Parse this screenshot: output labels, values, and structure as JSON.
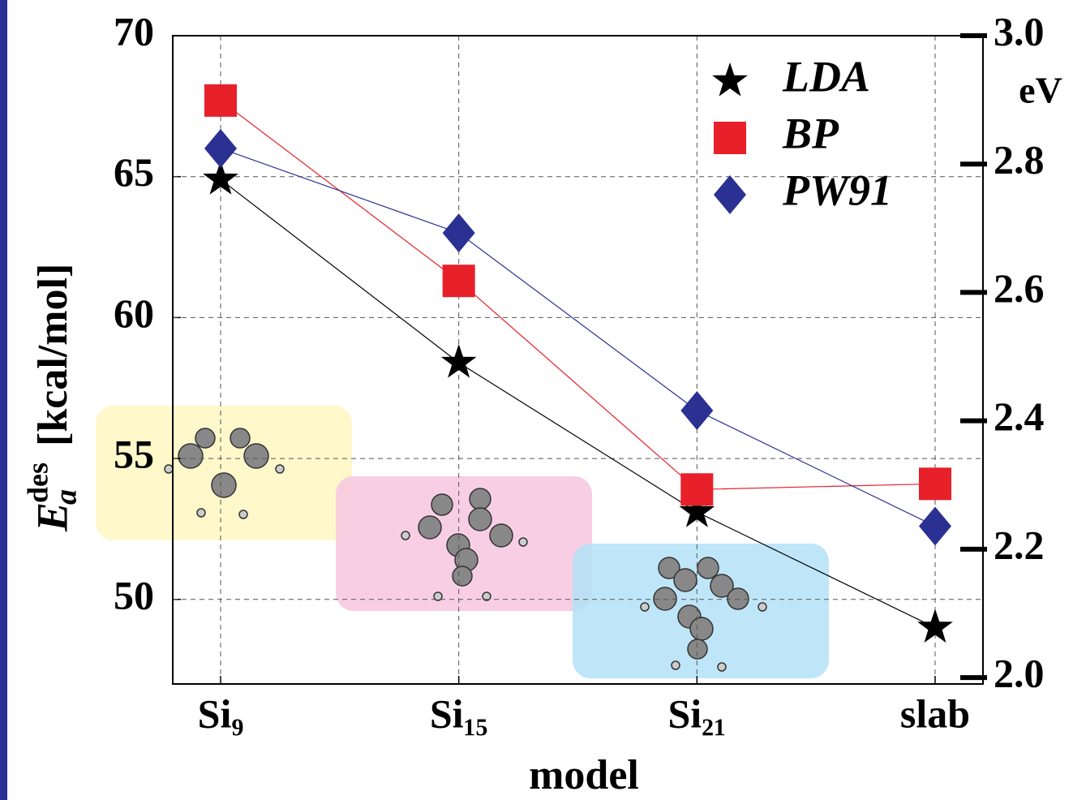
{
  "chart_data": {
    "type": "line",
    "xlabel": "model",
    "ylabel": {
      "symbol": "E",
      "sub": "a",
      "sup": "des",
      "unit": "[kcal/mol]"
    },
    "y2label": "eV",
    "categories": [
      "Si₉",
      "Si₁₅",
      "Si₂₁",
      "slab"
    ],
    "series": [
      {
        "name": "LDA",
        "color": "#000000",
        "marker": "star",
        "values": [
          64.9,
          58.4,
          53.1,
          49.0
        ]
      },
      {
        "name": "BP",
        "color": "#e8202a",
        "marker": "square",
        "values": [
          67.7,
          61.3,
          53.9,
          54.1
        ]
      },
      {
        "name": "PW91",
        "color": "#2b3192",
        "marker": "diamond",
        "values": [
          66.0,
          63.0,
          56.7,
          52.6
        ]
      }
    ],
    "ylim": [
      47,
      70
    ],
    "yticks": [
      50,
      55,
      60,
      65,
      70
    ],
    "y2lim": [
      1.99,
      3.0
    ],
    "y2ticks": [
      {
        "value": 2,
        "label": "2.0"
      },
      2.2,
      2.4,
      2.6,
      2.8,
      {
        "value": 3,
        "label": "3.0"
      }
    ],
    "grid": true,
    "legend": "upper right"
  }
}
